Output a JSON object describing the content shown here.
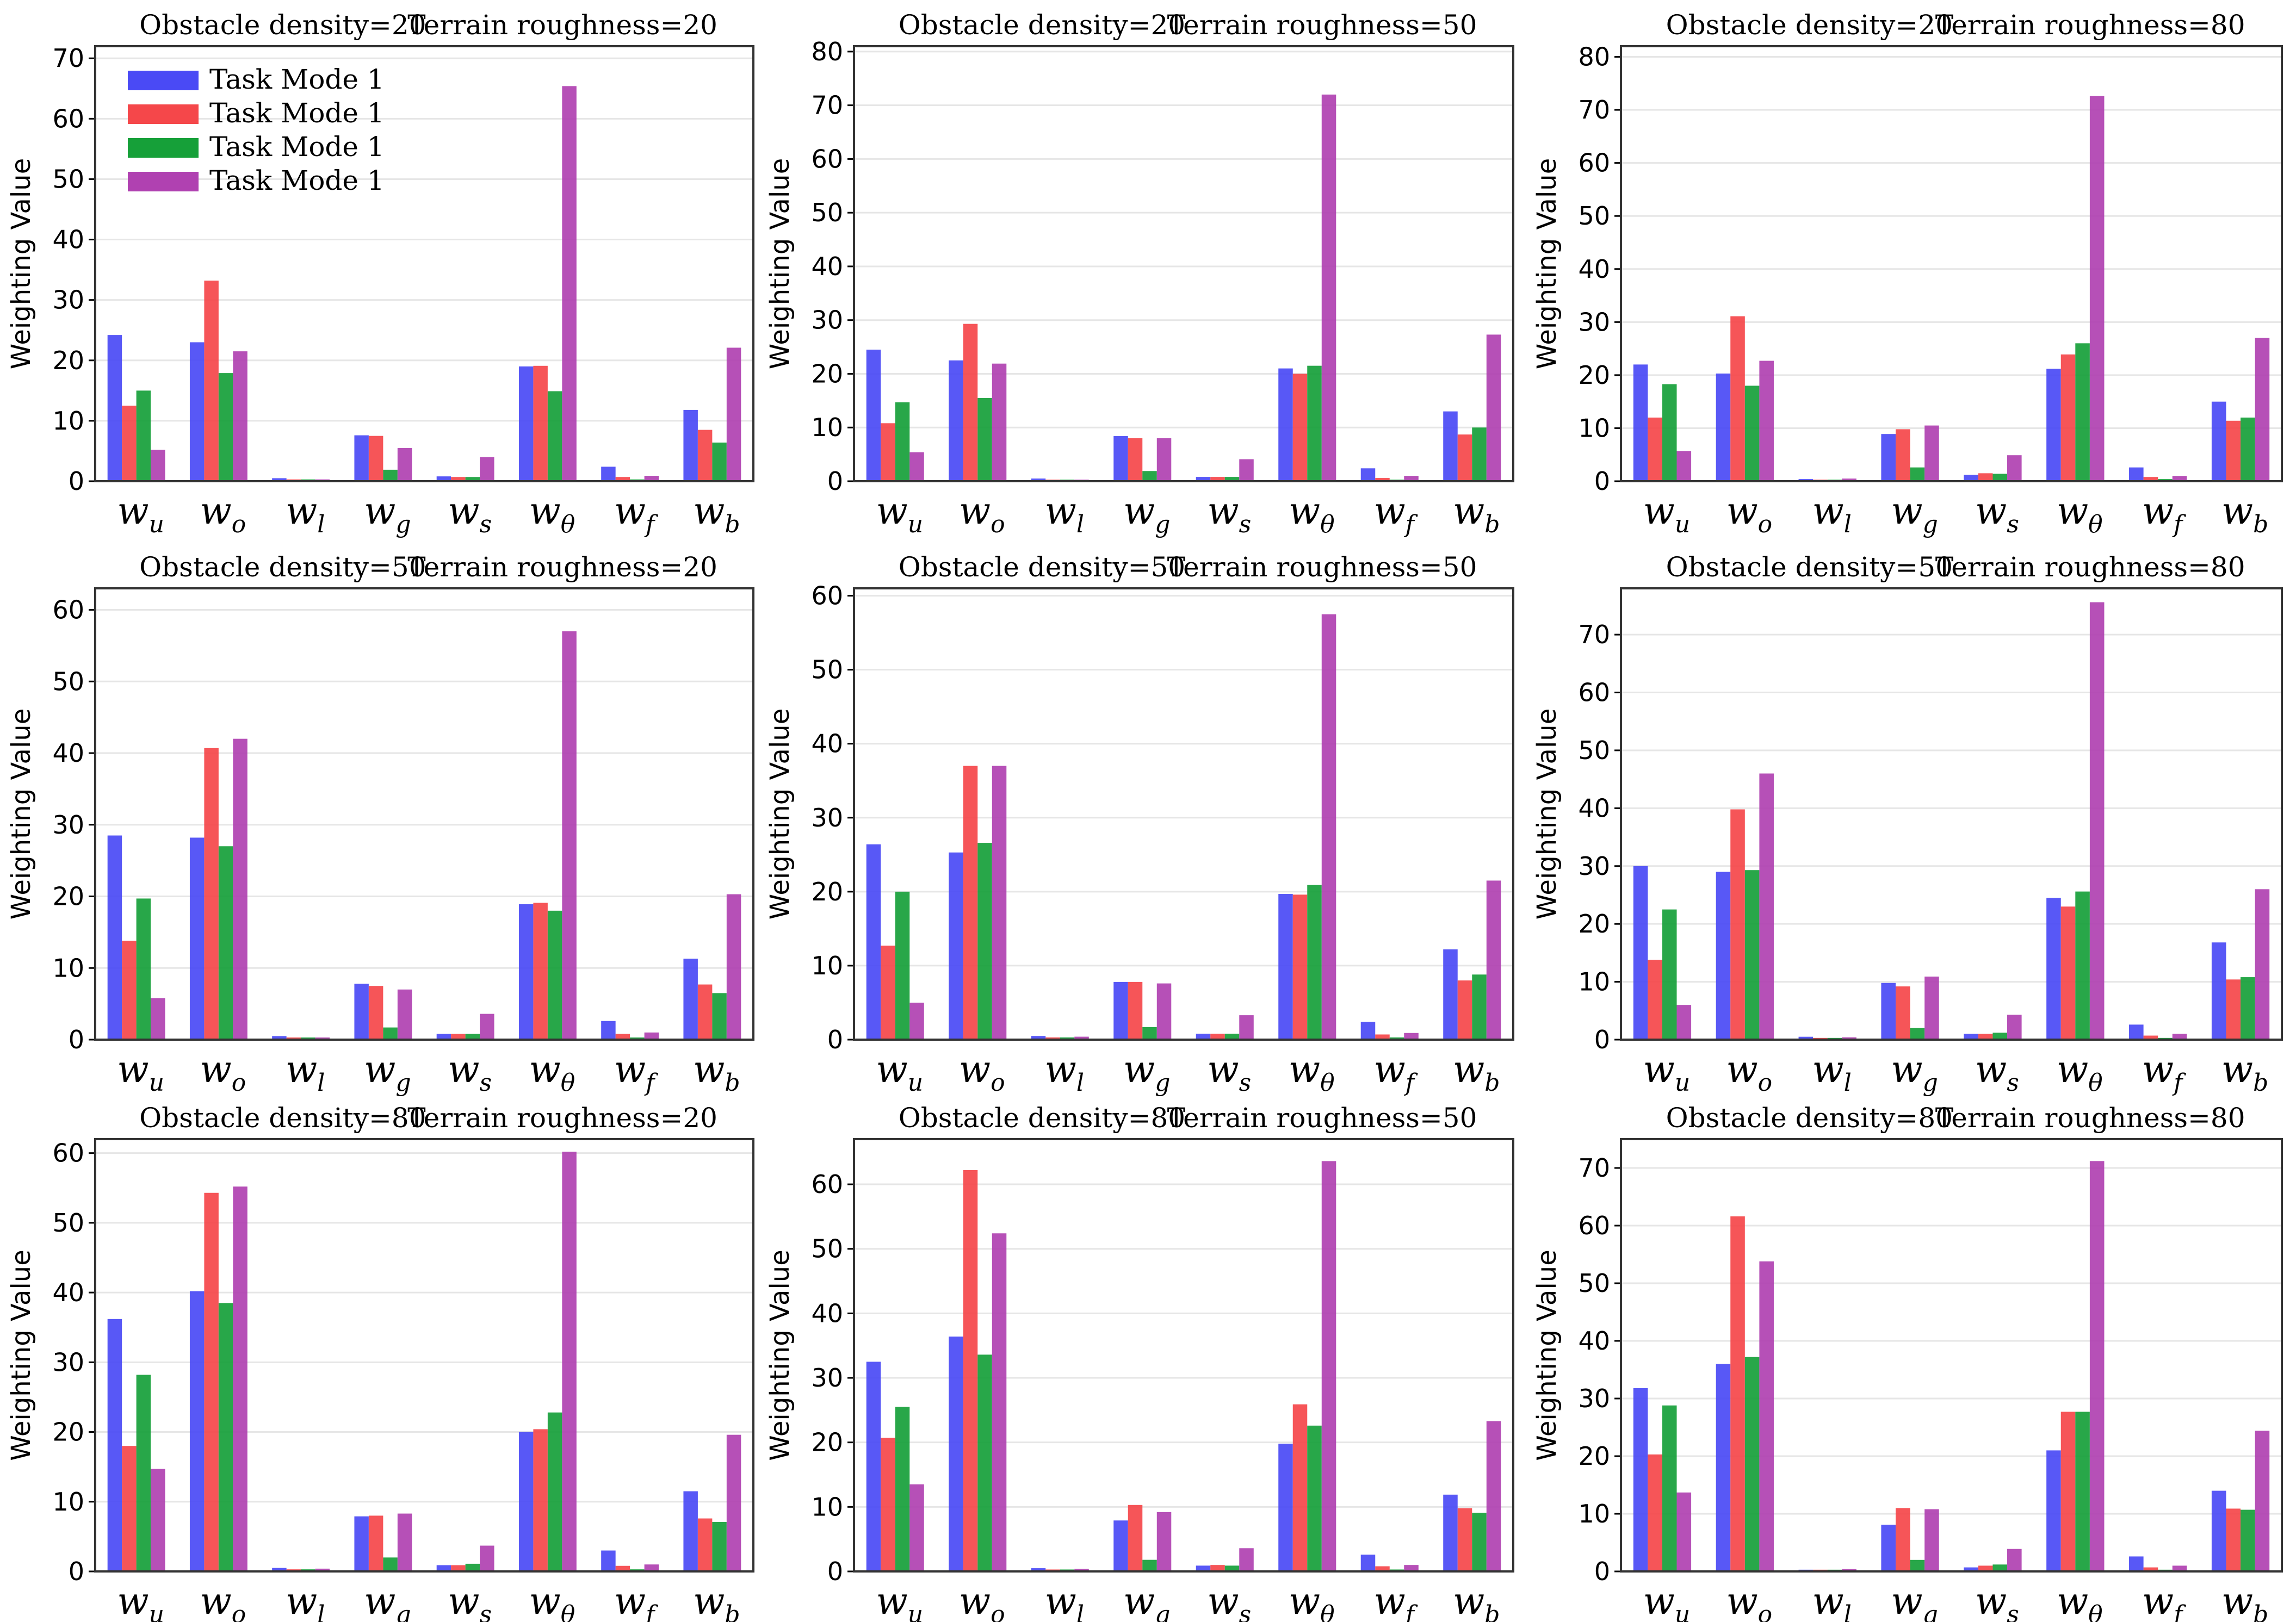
{
  "colors": {
    "series": [
      "#4a4af5",
      "#f5474a",
      "#16a039",
      "#b041b1"
    ],
    "grid": "#e6e6e6",
    "frame": "#333333"
  },
  "legend": [
    "Task Mode 1",
    "Task Mode 1",
    "Task Mode 1",
    "Task Mode 1"
  ],
  "chart_data": [
    {
      "type": "bar",
      "title_left": "Obstacle density=20",
      "title_right": "Terrain roughness=20",
      "ylabel": "Weighting Value",
      "ylim": [
        0,
        72
      ],
      "yticks": [
        0,
        10,
        20,
        30,
        40,
        50,
        60,
        70
      ],
      "categories": [
        {
          "base": "w",
          "sub": "u"
        },
        {
          "base": "w",
          "sub": "o"
        },
        {
          "base": "w",
          "sub": "l"
        },
        {
          "base": "w",
          "sub": "g"
        },
        {
          "base": "w",
          "sub": "s"
        },
        {
          "base": "w",
          "sub": "θ"
        },
        {
          "base": "w",
          "sub": "f"
        },
        {
          "base": "w",
          "sub": "b"
        }
      ],
      "series": [
        {
          "name": "Task Mode 1",
          "values": [
            24.2,
            23.0,
            0.5,
            7.6,
            0.8,
            19.0,
            2.4,
            11.8
          ]
        },
        {
          "name": "Task Mode 1",
          "values": [
            12.5,
            33.2,
            0.3,
            7.5,
            0.7,
            19.1,
            0.7,
            8.5
          ]
        },
        {
          "name": "Task Mode 1",
          "values": [
            15.0,
            17.9,
            0.3,
            1.9,
            0.7,
            14.9,
            0.3,
            6.4
          ]
        },
        {
          "name": "Task Mode 1",
          "values": [
            5.2,
            21.5,
            0.3,
            5.5,
            4.0,
            65.4,
            0.9,
            22.1
          ]
        }
      ]
    },
    {
      "type": "bar",
      "title_left": "Obstacle density=20",
      "title_right": "Terrain roughness=50",
      "ylabel": "Weighting Value",
      "ylim": [
        0,
        81
      ],
      "yticks": [
        0,
        10,
        20,
        30,
        40,
        50,
        60,
        70,
        80
      ],
      "categories": [
        {
          "base": "w",
          "sub": "u"
        },
        {
          "base": "w",
          "sub": "o"
        },
        {
          "base": "w",
          "sub": "l"
        },
        {
          "base": "w",
          "sub": "g"
        },
        {
          "base": "w",
          "sub": "s"
        },
        {
          "base": "w",
          "sub": "θ"
        },
        {
          "base": "w",
          "sub": "f"
        },
        {
          "base": "w",
          "sub": "b"
        }
      ],
      "series": [
        {
          "name": "Task Mode 1",
          "values": [
            24.5,
            22.5,
            0.5,
            8.4,
            0.8,
            21.0,
            2.4,
            13.0
          ]
        },
        {
          "name": "Task Mode 1",
          "values": [
            10.8,
            29.3,
            0.3,
            8.0,
            0.8,
            20.0,
            0.6,
            8.7
          ]
        },
        {
          "name": "Task Mode 1",
          "values": [
            14.7,
            15.5,
            0.3,
            1.9,
            0.8,
            21.5,
            0.3,
            10.0
          ]
        },
        {
          "name": "Task Mode 1",
          "values": [
            5.4,
            21.9,
            0.3,
            8.0,
            4.1,
            72.0,
            1.0,
            27.3
          ]
        }
      ]
    },
    {
      "type": "bar",
      "title_left": "Obstacle density=20",
      "title_right": "Terrain roughness=80",
      "ylabel": "Weighting Value",
      "ylim": [
        0,
        82
      ],
      "yticks": [
        0,
        10,
        20,
        30,
        40,
        50,
        60,
        70,
        80
      ],
      "categories": [
        {
          "base": "w",
          "sub": "u"
        },
        {
          "base": "w",
          "sub": "o"
        },
        {
          "base": "w",
          "sub": "l"
        },
        {
          "base": "w",
          "sub": "g"
        },
        {
          "base": "w",
          "sub": "s"
        },
        {
          "base": "w",
          "sub": "θ"
        },
        {
          "base": "w",
          "sub": "f"
        },
        {
          "base": "w",
          "sub": "b"
        }
      ],
      "series": [
        {
          "name": "Task Mode 1",
          "values": [
            22.0,
            20.3,
            0.4,
            8.9,
            1.2,
            21.2,
            2.6,
            15.0
          ]
        },
        {
          "name": "Task Mode 1",
          "values": [
            12.0,
            31.1,
            0.3,
            9.8,
            1.5,
            23.9,
            0.8,
            11.4
          ]
        },
        {
          "name": "Task Mode 1",
          "values": [
            18.3,
            18.0,
            0.3,
            2.6,
            1.4,
            26.0,
            0.4,
            12.0
          ]
        },
        {
          "name": "Task Mode 1",
          "values": [
            5.7,
            22.7,
            0.5,
            10.5,
            4.9,
            72.6,
            1.0,
            27.0
          ]
        }
      ]
    },
    {
      "type": "bar",
      "title_left": "Obstacle density=50",
      "title_right": "Terrain roughness=20",
      "ylabel": "Weighting Value",
      "ylim": [
        0,
        63
      ],
      "yticks": [
        0,
        10,
        20,
        30,
        40,
        50,
        60
      ],
      "categories": [
        {
          "base": "w",
          "sub": "u"
        },
        {
          "base": "w",
          "sub": "o"
        },
        {
          "base": "w",
          "sub": "l"
        },
        {
          "base": "w",
          "sub": "g"
        },
        {
          "base": "w",
          "sub": "s"
        },
        {
          "base": "w",
          "sub": "θ"
        },
        {
          "base": "w",
          "sub": "f"
        },
        {
          "base": "w",
          "sub": "b"
        }
      ],
      "series": [
        {
          "name": "Task Mode 1",
          "values": [
            28.5,
            28.2,
            0.5,
            7.8,
            0.8,
            18.9,
            2.6,
            11.3
          ]
        },
        {
          "name": "Task Mode 1",
          "values": [
            13.8,
            40.7,
            0.3,
            7.5,
            0.8,
            19.1,
            0.8,
            7.7
          ]
        },
        {
          "name": "Task Mode 1",
          "values": [
            19.7,
            27.0,
            0.3,
            1.7,
            0.8,
            18.0,
            0.3,
            6.5
          ]
        },
        {
          "name": "Task Mode 1",
          "values": [
            5.8,
            42.0,
            0.3,
            7.0,
            3.6,
            57.0,
            1.0,
            20.3
          ]
        }
      ]
    },
    {
      "type": "bar",
      "title_left": "Obstacle density=50",
      "title_right": "Terrain roughness=50",
      "ylabel": "Weighting Value",
      "ylim": [
        0,
        61
      ],
      "yticks": [
        0,
        10,
        20,
        30,
        40,
        50,
        60
      ],
      "categories": [
        {
          "base": "w",
          "sub": "u"
        },
        {
          "base": "w",
          "sub": "o"
        },
        {
          "base": "w",
          "sub": "l"
        },
        {
          "base": "w",
          "sub": "g"
        },
        {
          "base": "w",
          "sub": "s"
        },
        {
          "base": "w",
          "sub": "θ"
        },
        {
          "base": "w",
          "sub": "f"
        },
        {
          "base": "w",
          "sub": "b"
        }
      ],
      "series": [
        {
          "name": "Task Mode 1",
          "values": [
            26.4,
            25.3,
            0.5,
            7.8,
            0.8,
            19.7,
            2.4,
            12.2
          ]
        },
        {
          "name": "Task Mode 1",
          "values": [
            12.7,
            37.0,
            0.3,
            7.8,
            0.8,
            19.6,
            0.7,
            8.0
          ]
        },
        {
          "name": "Task Mode 1",
          "values": [
            20.0,
            26.6,
            0.3,
            1.7,
            0.8,
            20.9,
            0.3,
            8.8
          ]
        },
        {
          "name": "Task Mode 1",
          "values": [
            5.0,
            37.0,
            0.4,
            7.6,
            3.3,
            57.5,
            0.9,
            21.5
          ]
        }
      ]
    },
    {
      "type": "bar",
      "title_left": "Obstacle density=50",
      "title_right": "Terrain roughness=80",
      "ylabel": "Weighting Value",
      "ylim": [
        0,
        78
      ],
      "yticks": [
        0,
        10,
        20,
        30,
        40,
        50,
        60,
        70
      ],
      "categories": [
        {
          "base": "w",
          "sub": "u"
        },
        {
          "base": "w",
          "sub": "o"
        },
        {
          "base": "w",
          "sub": "l"
        },
        {
          "base": "w",
          "sub": "g"
        },
        {
          "base": "w",
          "sub": "s"
        },
        {
          "base": "w",
          "sub": "θ"
        },
        {
          "base": "w",
          "sub": "f"
        },
        {
          "base": "w",
          "sub": "b"
        }
      ],
      "series": [
        {
          "name": "Task Mode 1",
          "values": [
            30.0,
            29.0,
            0.5,
            9.8,
            1.0,
            24.5,
            2.6,
            16.8
          ]
        },
        {
          "name": "Task Mode 1",
          "values": [
            13.8,
            39.8,
            0.3,
            9.2,
            1.0,
            23.0,
            0.7,
            10.4
          ]
        },
        {
          "name": "Task Mode 1",
          "values": [
            22.5,
            29.3,
            0.3,
            2.0,
            1.2,
            25.6,
            0.3,
            10.8
          ]
        },
        {
          "name": "Task Mode 1",
          "values": [
            6.0,
            46.0,
            0.4,
            10.9,
            4.3,
            75.6,
            1.0,
            26.0
          ]
        }
      ]
    },
    {
      "type": "bar",
      "title_left": "Obstacle density=80",
      "title_right": "Terrain roughness=20",
      "ylabel": "Weighting Value",
      "ylim": [
        0,
        62
      ],
      "yticks": [
        0,
        10,
        20,
        30,
        40,
        50,
        60
      ],
      "categories": [
        {
          "base": "w",
          "sub": "u"
        },
        {
          "base": "w",
          "sub": "o"
        },
        {
          "base": "w",
          "sub": "l"
        },
        {
          "base": "w",
          "sub": "g"
        },
        {
          "base": "w",
          "sub": "s"
        },
        {
          "base": "w",
          "sub": "θ"
        },
        {
          "base": "w",
          "sub": "f"
        },
        {
          "base": "w",
          "sub": "b"
        }
      ],
      "series": [
        {
          "name": "Task Mode 1",
          "values": [
            36.2,
            40.2,
            0.5,
            7.9,
            0.9,
            20.0,
            3.0,
            11.5
          ]
        },
        {
          "name": "Task Mode 1",
          "values": [
            18.0,
            54.3,
            0.3,
            8.0,
            0.9,
            20.4,
            0.8,
            7.6
          ]
        },
        {
          "name": "Task Mode 1",
          "values": [
            28.2,
            38.5,
            0.3,
            2.0,
            1.1,
            22.8,
            0.3,
            7.1
          ]
        },
        {
          "name": "Task Mode 1",
          "values": [
            14.7,
            55.2,
            0.4,
            8.3,
            3.7,
            60.2,
            1.0,
            19.6
          ]
        }
      ]
    },
    {
      "type": "bar",
      "title_left": "Obstacle density=80",
      "title_right": "Terrain roughness=50",
      "ylabel": "Weighting Value",
      "ylim": [
        0,
        67
      ],
      "yticks": [
        0,
        10,
        20,
        30,
        40,
        50,
        60
      ],
      "categories": [
        {
          "base": "w",
          "sub": "u"
        },
        {
          "base": "w",
          "sub": "o"
        },
        {
          "base": "w",
          "sub": "l"
        },
        {
          "base": "w",
          "sub": "g"
        },
        {
          "base": "w",
          "sub": "s"
        },
        {
          "base": "w",
          "sub": "θ"
        },
        {
          "base": "w",
          "sub": "f"
        },
        {
          "base": "w",
          "sub": "b"
        }
      ],
      "series": [
        {
          "name": "Task Mode 1",
          "values": [
            32.5,
            36.4,
            0.5,
            7.9,
            0.9,
            19.8,
            2.6,
            11.9
          ]
        },
        {
          "name": "Task Mode 1",
          "values": [
            20.7,
            62.2,
            0.3,
            10.3,
            1.0,
            25.9,
            0.8,
            9.8
          ]
        },
        {
          "name": "Task Mode 1",
          "values": [
            25.5,
            33.6,
            0.3,
            1.8,
            0.9,
            22.6,
            0.3,
            9.1
          ]
        },
        {
          "name": "Task Mode 1",
          "values": [
            13.5,
            52.4,
            0.4,
            9.2,
            3.6,
            63.6,
            1.0,
            23.3
          ]
        }
      ]
    },
    {
      "type": "bar",
      "title_left": "Obstacle density=80",
      "title_right": "Terrain roughness=80",
      "ylabel": "Weighting Value",
      "ylim": [
        0,
        75
      ],
      "yticks": [
        0,
        10,
        20,
        30,
        40,
        50,
        60,
        70
      ],
      "categories": [
        {
          "base": "w",
          "sub": "u"
        },
        {
          "base": "w",
          "sub": "o"
        },
        {
          "base": "w",
          "sub": "l"
        },
        {
          "base": "w",
          "sub": "g"
        },
        {
          "base": "w",
          "sub": "s"
        },
        {
          "base": "w",
          "sub": "θ"
        },
        {
          "base": "w",
          "sub": "f"
        },
        {
          "base": "w",
          "sub": "b"
        }
      ],
      "series": [
        {
          "name": "Task Mode 1",
          "values": [
            31.8,
            36.0,
            0.3,
            8.1,
            0.7,
            21.0,
            2.6,
            14.0
          ]
        },
        {
          "name": "Task Mode 1",
          "values": [
            20.3,
            61.6,
            0.3,
            11.0,
            1.0,
            27.7,
            0.7,
            10.9
          ]
        },
        {
          "name": "Task Mode 1",
          "values": [
            28.8,
            37.2,
            0.3,
            2.0,
            1.2,
            27.7,
            0.3,
            10.7
          ]
        },
        {
          "name": "Task Mode 1",
          "values": [
            13.7,
            53.8,
            0.4,
            10.8,
            3.9,
            71.2,
            1.0,
            24.4
          ]
        }
      ]
    }
  ]
}
